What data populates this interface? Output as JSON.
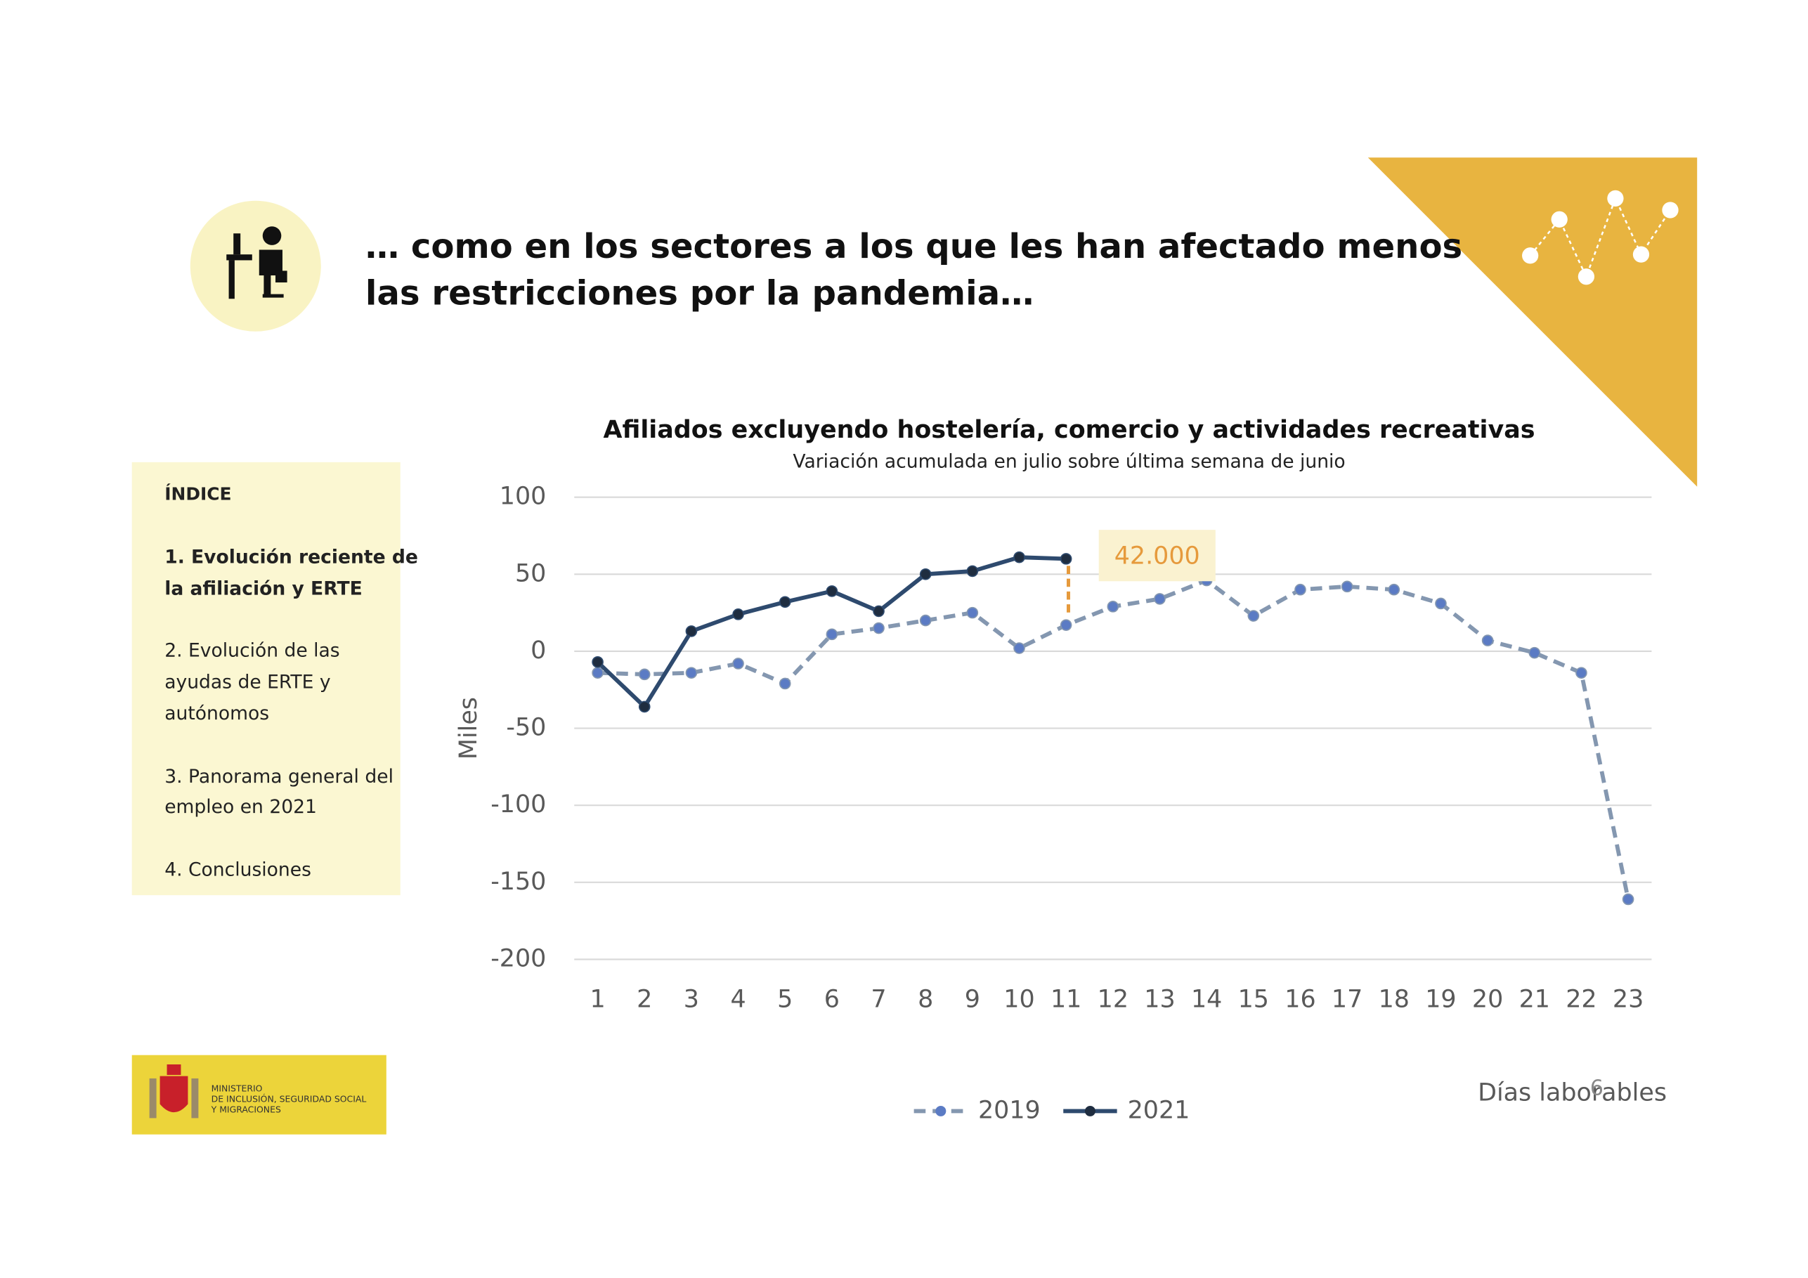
{
  "header": {
    "title": [
      "… como en los sectores a los que les han afectado menos",
      "las restricciones por la pandemia…"
    ]
  },
  "index": {
    "heading": "ÍNDICE",
    "items": [
      [
        "1. Evolución reciente de",
        "la afiliación y ERTE"
      ],
      [
        "2. Evolución de las",
        "ayudas de ERTE y",
        "autónomos"
      ],
      [
        "3. Panorama general del",
        "empleo en 2021"
      ],
      [
        "4. Conclusiones"
      ]
    ]
  },
  "logo": {
    "lines": [
      "MINISTERIO",
      "DE INCLUSIÓN, SEGURIDAD SOCIAL",
      "Y MIGRACIONES"
    ]
  },
  "page_number": "6",
  "chart_data": {
    "type": "line",
    "title": "Afiliados excluyendo hostelería, comercio y actividades recreativas",
    "subtitle": "Variación acumulada en julio sobre última semana de junio",
    "x_label": "Días laborables",
    "y_label": "Miles",
    "categories": [
      "1",
      "2",
      "3",
      "4",
      "5",
      "6",
      "7",
      "8",
      "9",
      "10",
      "11",
      "12",
      "13",
      "14",
      "15",
      "16",
      "17",
      "18",
      "19",
      "20",
      "21",
      "22",
      "23"
    ],
    "series": [
      {
        "name": "2019",
        "color": "#8497b0",
        "marker_color": "#5b7bc4",
        "dashed": true,
        "values": [
          -14,
          -15,
          -14,
          -8,
          -21,
          11,
          15,
          20,
          25,
          2,
          17,
          29,
          34,
          46,
          23,
          40,
          42,
          40,
          31,
          7,
          -1,
          -14,
          -161
        ]
      },
      {
        "name": "2021",
        "color": "#2e4a6e",
        "marker_color": "#1f2d40",
        "dashed": false,
        "values": [
          -7,
          -36,
          13,
          24,
          32,
          39,
          26,
          50,
          52,
          61,
          60,
          null,
          null,
          null,
          null,
          null,
          null,
          null,
          null,
          null,
          null,
          null,
          null
        ]
      }
    ],
    "annotation": {
      "text": "42.000",
      "color": "#e69a3c"
    },
    "ylim": [
      -200,
      100
    ],
    "yticks": [
      -200,
      -150,
      -100,
      -50,
      0,
      50,
      100
    ],
    "grid": true,
    "legend": "bottom"
  }
}
